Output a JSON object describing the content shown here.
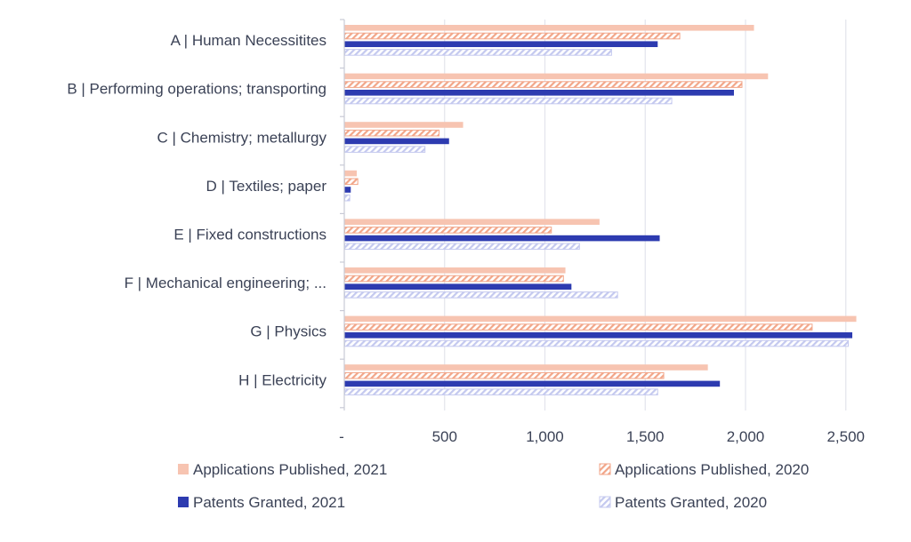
{
  "colors": {
    "applications_2021": "#f7c4b1",
    "applications_2020": "#f2a689",
    "patents_2021": "#2d3bb0",
    "patents_2020": "#c4c9ef",
    "gridline": "#e3e4ec",
    "axis": "#c8cad6",
    "text": "#3b4256"
  },
  "chart_data": {
    "type": "bar",
    "orientation": "horizontal",
    "categories": [
      "A | Human Necessitites",
      "B | Performing operations; transporting",
      "C | Chemistry; metallurgy",
      "D | Textiles; paper",
      "E | Fixed constructions",
      "F | Mechanical engineering; ...",
      "G | Physics ",
      "H | Electricity"
    ],
    "series": [
      {
        "name": "Applications Published, 2021",
        "pattern": "solid",
        "color_key": "applications_2021",
        "values": [
          2040,
          2110,
          590,
          60,
          1270,
          1100,
          2550,
          1810
        ]
      },
      {
        "name": "Applications Published, 2020",
        "pattern": "hatched",
        "color_key": "applications_2020",
        "values": [
          1670,
          1980,
          470,
          65,
          1030,
          1090,
          2330,
          1590
        ]
      },
      {
        "name": "Patents Granted, 2021",
        "pattern": "solid",
        "color_key": "patents_2021",
        "values": [
          1560,
          1940,
          520,
          30,
          1570,
          1130,
          2530,
          1870
        ]
      },
      {
        "name": "Patents Granted, 2020",
        "pattern": "hatched",
        "color_key": "patents_2020",
        "values": [
          1330,
          1630,
          400,
          25,
          1170,
          1360,
          2510,
          1560
        ]
      }
    ],
    "xlim": [
      0,
      2600
    ],
    "x_ticks": [
      0,
      500,
      1000,
      1500,
      2000,
      2500
    ],
    "x_tick_labels": [
      "-",
      "500",
      "1,000",
      "1,500",
      "2,000",
      "2,500"
    ],
    "grid": true,
    "legend": "bottom",
    "title": "",
    "xlabel": "",
    "ylabel": ""
  }
}
